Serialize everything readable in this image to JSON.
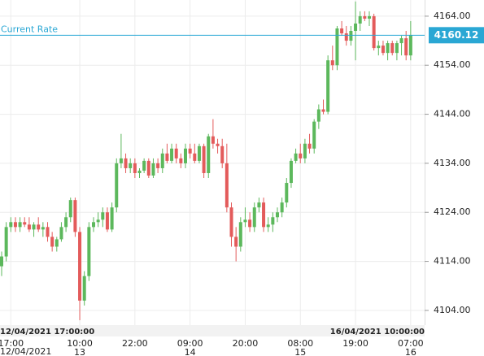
{
  "chart_data": {
    "type": "candlestick",
    "up_color": "#5cb85c",
    "down_color": "#e35b5b",
    "grid": true,
    "ylim": [
      4101,
      4167.3
    ],
    "yticks": [
      {
        "value": 4104,
        "label": "4104.00"
      },
      {
        "value": 4114,
        "label": "4114.00"
      },
      {
        "value": 4124,
        "label": "4124.00"
      },
      {
        "value": 4134,
        "label": "4134.00"
      },
      {
        "value": 4144,
        "label": "4144.00"
      },
      {
        "value": 4154,
        "label": "4154.00"
      },
      {
        "value": 4164,
        "label": "4164.00"
      }
    ],
    "categories": [
      null,
      null,
      "17:00",
      null,
      null,
      null,
      null,
      null,
      null,
      null,
      null,
      null,
      null,
      null,
      null,
      null,
      null,
      "10:00",
      null,
      null,
      null,
      null,
      null,
      null,
      null,
      null,
      null,
      null,
      null,
      "22:00",
      null,
      null,
      null,
      null,
      null,
      null,
      null,
      null,
      null,
      null,
      null,
      "09:00",
      null,
      null,
      null,
      null,
      null,
      null,
      null,
      null,
      null,
      null,
      null,
      "20:00",
      null,
      null,
      null,
      null,
      null,
      null,
      null,
      null,
      null,
      null,
      null,
      "08:00",
      null,
      null,
      null,
      null,
      null,
      null,
      null,
      null,
      null,
      null,
      null,
      "19:00",
      null,
      null,
      null,
      null,
      null,
      null,
      null,
      null,
      null,
      null,
      null,
      "07:00"
    ],
    "day_labels": [
      null,
      null,
      null,
      null,
      null,
      null,
      null,
      null,
      null,
      null,
      null,
      null,
      null,
      null,
      null,
      null,
      null,
      "13",
      null,
      null,
      null,
      null,
      null,
      null,
      null,
      null,
      null,
      null,
      null,
      null,
      null,
      null,
      null,
      null,
      null,
      null,
      null,
      null,
      null,
      null,
      null,
      "14",
      null,
      null,
      null,
      null,
      null,
      null,
      null,
      null,
      null,
      null,
      null,
      null,
      null,
      null,
      null,
      null,
      null,
      null,
      null,
      null,
      null,
      null,
      null,
      "15",
      null,
      null,
      null,
      null,
      null,
      null,
      null,
      null,
      null,
      null,
      null,
      null,
      null,
      null,
      null,
      null,
      null,
      null,
      null,
      null,
      null,
      null,
      null,
      "16"
    ],
    "open": [
      4113,
      4115,
      4121,
      4122,
      4121,
      4122,
      4121.5,
      4120.5,
      4121.5,
      4120.5,
      4121,
      4119,
      4117,
      4118.5,
      4121,
      4123,
      4126.5,
      4120,
      4106,
      4111,
      4121,
      4122,
      4122.5,
      4124,
      4120.5,
      4125,
      4134,
      4135,
      4133,
      4134,
      4132,
      4132.5,
      4134.5,
      4131.5,
      4134,
      4133,
      4136,
      4134.5,
      4137,
      4135,
      4134,
      4137,
      4136,
      4134.5,
      4137.5,
      4132,
      4139.5,
      4138,
      4137.5,
      4134,
      4125,
      4119,
      4117,
      4122,
      4122.5,
      4121,
      4125,
      4126,
      4121,
      4121.5,
      4123,
      4124,
      4126,
      4130,
      4134.5,
      4136,
      4135,
      4138,
      4137,
      4142.5,
      4145,
      4144.5,
      4155,
      4154,
      4161.5,
      4160.5,
      4159,
      4161,
      4162.5,
      4164,
      4163.5,
      4164,
      4157.5,
      4158,
      4156.5,
      4158.5,
      4156.5,
      4158.5,
      4159.5,
      4156
    ],
    "high": [
      4116,
      4122,
      4123,
      4123,
      4123,
      4123,
      4123,
      4122,
      4123,
      4122,
      4122,
      4120,
      4119,
      4122,
      4124,
      4127,
      4127,
      4121,
      4112,
      4122,
      4123,
      4124,
      4125,
      4125,
      4126,
      4135,
      4140,
      4136,
      4135,
      4135,
      4133,
      4135,
      4135,
      4135,
      4135,
      4137,
      4138,
      4138,
      4138,
      4136,
      4138,
      4138,
      4138,
      4138,
      4138,
      4140,
      4143,
      4139,
      4139,
      4138,
      4126,
      4121,
      4123,
      4125,
      4124,
      4126,
      4127,
      4127,
      4123,
      4124,
      4125,
      4127,
      4131,
      4135,
      4137,
      4138,
      4139,
      4140,
      4143,
      4146,
      4147,
      4156,
      4158,
      4162,
      4163,
      4162,
      4162,
      4167,
      4165,
      4165,
      4165,
      4164.5,
      4159,
      4159,
      4159,
      4159,
      4159,
      4160,
      4161,
      4163
    ],
    "low": [
      4111,
      4114,
      4120,
      4120,
      4120,
      4121,
      4120,
      4119,
      4120,
      4119,
      4118,
      4116,
      4116,
      4118,
      4120,
      4122,
      4119,
      4102,
      4105,
      4110,
      4120,
      4121,
      4121,
      4120,
      4120,
      4124,
      4133,
      4132,
      4132,
      4131,
      4131,
      4132,
      4131,
      4131,
      4132,
      4132,
      4134,
      4134,
      4134,
      4133,
      4133,
      4135,
      4134,
      4134,
      4131,
      4131,
      4137,
      4136,
      4133,
      4124,
      4117,
      4114,
      4116,
      4121,
      4120,
      4120,
      4124,
      4120,
      4120,
      4120,
      4122,
      4123,
      4125,
      4129,
      4134,
      4134,
      4134,
      4136,
      4136,
      4141,
      4144,
      4144,
      4153,
      4153,
      4160,
      4158,
      4158,
      4155,
      4161,
      4163,
      4162,
      4157,
      4156,
      4156,
      4155,
      4156,
      4155,
      4156,
      4155,
      4155
    ],
    "close": [
      4115,
      4121,
      4122,
      4121,
      4122,
      4121.5,
      4120.5,
      4121.5,
      4120.5,
      4121,
      4119,
      4117,
      4118.5,
      4121,
      4123,
      4126.5,
      4120,
      4106,
      4111,
      4121,
      4122,
      4122.5,
      4124,
      4120.5,
      4125,
      4134,
      4135,
      4133,
      4134,
      4132,
      4132.5,
      4134.5,
      4131.5,
      4134,
      4133,
      4136,
      4134.5,
      4137,
      4135,
      4134,
      4137,
      4136,
      4134.5,
      4137.5,
      4132,
      4139.5,
      4138,
      4137.5,
      4134,
      4125,
      4119,
      4117,
      4122,
      4122.5,
      4121,
      4125,
      4126,
      4121,
      4121.5,
      4123,
      4124,
      4126,
      4130,
      4134.5,
      4136,
      4135,
      4138,
      4137,
      4142.5,
      4145,
      4144.5,
      4155,
      4154,
      4161.5,
      4160.5,
      4159,
      4161,
      4162.5,
      4164,
      4163.5,
      4164,
      4157.5,
      4158,
      4156.5,
      4158.5,
      4156.5,
      4158.5,
      4159.5,
      4156,
      4160.12
    ],
    "current_rate_label": "Current Rate",
    "current_rate": 4160.12,
    "current_rate_color": "#2aa7d4",
    "start_label": "12/04/2021 17:00:00",
    "end_label": "16/04/2021 10:00:00",
    "date_label": "12/04/2021"
  }
}
